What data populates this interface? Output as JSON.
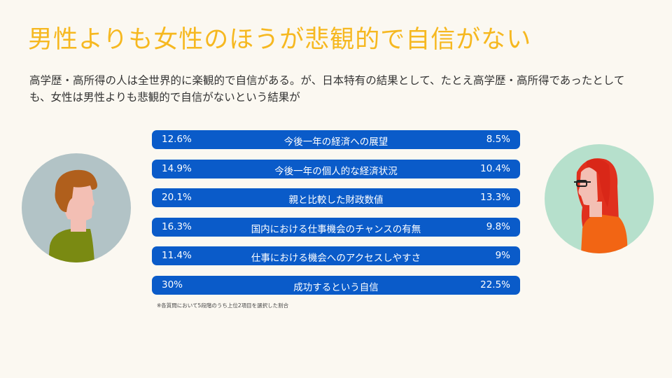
{
  "title": "男性よりも女性のほうが悲観的で自信がない",
  "subtitle": "高学歴・高所得の人は全世界的に楽観的で自信がある。が、日本特有の結果として、たとえ高学歴・高所得であったとしても、女性は男性よりも悲観的で自信がないという結果が",
  "rows": [
    {
      "male": "12.6%",
      "label": "今後一年の経済への展望",
      "female": "8.5%"
    },
    {
      "male": "14.9%",
      "label": "今後一年の個人的な経済状況",
      "female": "10.4%"
    },
    {
      "male": "20.1%",
      "label": "親と比較した財政数値",
      "female": "13.3%"
    },
    {
      "male": "16.3%",
      "label": "国内における仕事機会のチャンスの有無",
      "female": "9.8%"
    },
    {
      "male": "11.4%",
      "label": "仕事における機会へのアクセスしやすさ",
      "female": "9%"
    },
    {
      "male": "30%",
      "label": "成功するという自信",
      "female": "22.5%"
    }
  ],
  "note": "※各質問において5段階のうち上位2項目を選択した割合",
  "colors": {
    "title": "#f6b820",
    "bar": "#0a5bc9",
    "background": "#fbf8f1"
  }
}
